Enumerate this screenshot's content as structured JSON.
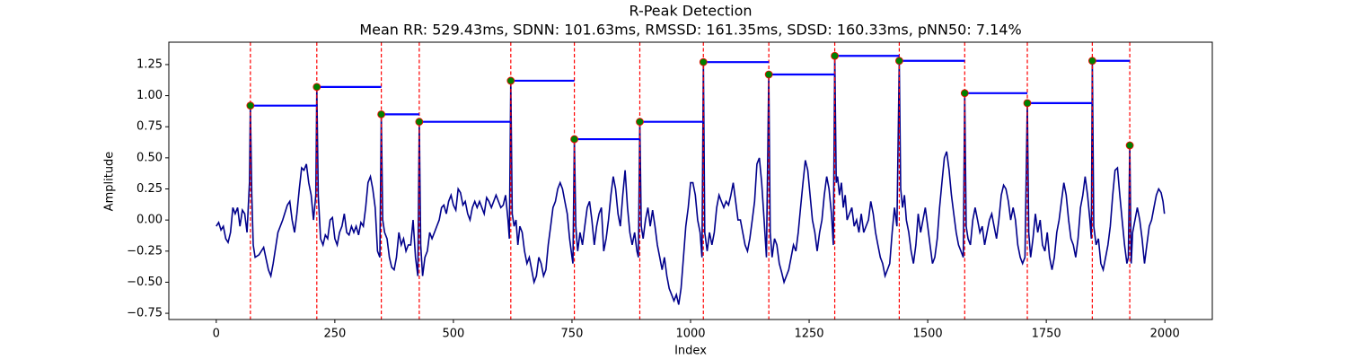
{
  "chart_data": {
    "type": "line",
    "title": "R-Peak Detection",
    "subtitle": "Mean RR: 529.43ms, SDNN: 101.63ms, RMSSD: 161.35ms, SDSD: 160.33ms, pNN50: 7.14%",
    "x_label": "Index",
    "y_label": "Amplitude",
    "xlim": [
      -100,
      2100
    ],
    "ylim": [
      -0.8,
      1.43
    ],
    "xticks": [
      0,
      250,
      500,
      750,
      1000,
      1250,
      1500,
      1750,
      2000
    ],
    "yticks": [
      {
        "value": -0.75,
        "label": "−0.75"
      },
      {
        "value": -0.5,
        "label": "−0.50"
      },
      {
        "value": -0.25,
        "label": "−0.25"
      },
      {
        "value": 0,
        "label": "0.00"
      },
      {
        "value": 0.25,
        "label": "0.25"
      },
      {
        "value": 0.5,
        "label": "0.50"
      },
      {
        "value": 0.75,
        "label": "0.75"
      },
      {
        "value": 1,
        "label": "1.00"
      },
      {
        "value": 1.25,
        "label": "1.25"
      }
    ],
    "series": [
      {
        "color": "#00008b",
        "x": [
          0,
          5,
          10,
          15,
          20,
          25,
          30,
          35,
          40,
          45,
          50,
          55,
          60,
          65,
          70,
          72,
          75,
          78,
          82,
          90,
          100,
          110,
          115,
          120,
          130,
          140,
          150,
          155,
          160,
          165,
          170,
          175,
          180,
          185,
          190,
          195,
          200,
          205,
          210,
          212,
          215,
          220,
          225,
          230,
          235,
          240,
          245,
          250,
          255,
          260,
          265,
          270,
          275,
          280,
          285,
          290,
          295,
          300,
          305,
          310,
          315,
          320,
          325,
          330,
          335,
          340,
          345,
          348,
          351,
          355,
          360,
          365,
          370,
          375,
          380,
          385,
          390,
          395,
          400,
          405,
          410,
          415,
          420,
          425,
          428,
          431,
          435,
          440,
          445,
          450,
          455,
          460,
          465,
          470,
          475,
          480,
          485,
          490,
          495,
          500,
          505,
          510,
          515,
          520,
          525,
          530,
          535,
          540,
          545,
          550,
          555,
          560,
          565,
          570,
          575,
          580,
          590,
          600,
          605,
          610,
          615,
          618,
          621,
          624,
          628,
          632,
          636,
          640,
          645,
          650,
          655,
          660,
          665,
          670,
          675,
          680,
          685,
          690,
          695,
          700,
          705,
          710,
          715,
          720,
          725,
          730,
          735,
          740,
          745,
          750,
          752,
          755,
          758,
          762,
          767,
          772,
          777,
          782,
          787,
          792,
          797,
          802,
          807,
          812,
          817,
          822,
          827,
          832,
          837,
          842,
          847,
          852,
          857,
          862,
          867,
          872,
          877,
          882,
          887,
          890,
          893,
          896,
          900,
          905,
          910,
          915,
          920,
          925,
          930,
          935,
          940,
          945,
          950,
          955,
          960,
          965,
          970,
          975,
          980,
          985,
          990,
          995,
          1000,
          1005,
          1010,
          1015,
          1020,
          1024,
          1027,
          1030,
          1035,
          1040,
          1045,
          1050,
          1055,
          1060,
          1065,
          1070,
          1075,
          1080,
          1085,
          1090,
          1095,
          1100,
          1105,
          1110,
          1115,
          1120,
          1125,
          1130,
          1135,
          1140,
          1145,
          1150,
          1155,
          1160,
          1165,
          1168,
          1172,
          1177,
          1182,
          1187,
          1192,
          1197,
          1202,
          1207,
          1212,
          1217,
          1222,
          1227,
          1232,
          1237,
          1242,
          1247,
          1252,
          1257,
          1262,
          1267,
          1272,
          1277,
          1282,
          1287,
          1292,
          1297,
          1301,
          1304,
          1307,
          1310,
          1314,
          1318,
          1322,
          1326,
          1330,
          1335,
          1340,
          1345,
          1350,
          1355,
          1360,
          1365,
          1370,
          1375,
          1380,
          1385,
          1390,
          1395,
          1400,
          1405,
          1410,
          1415,
          1420,
          1425,
          1430,
          1435,
          1440,
          1443,
          1447,
          1451,
          1455,
          1460,
          1465,
          1470,
          1475,
          1480,
          1485,
          1490,
          1495,
          1500,
          1505,
          1510,
          1515,
          1520,
          1525,
          1530,
          1535,
          1540,
          1545,
          1550,
          1555,
          1560,
          1565,
          1570,
          1575,
          1578,
          1581,
          1585,
          1590,
          1595,
          1600,
          1605,
          1610,
          1615,
          1620,
          1625,
          1630,
          1635,
          1640,
          1645,
          1650,
          1655,
          1660,
          1665,
          1670,
          1675,
          1680,
          1685,
          1690,
          1695,
          1700,
          1705,
          1710,
          1713,
          1717,
          1722,
          1727,
          1732,
          1737,
          1742,
          1747,
          1752,
          1757,
          1762,
          1767,
          1772,
          1777,
          1782,
          1787,
          1792,
          1797,
          1802,
          1807,
          1812,
          1817,
          1822,
          1827,
          1832,
          1837,
          1842,
          1845,
          1847,
          1850,
          1855,
          1860,
          1865,
          1870,
          1875,
          1880,
          1885,
          1890,
          1895,
          1900,
          1905,
          1910,
          1915,
          1920,
          1923,
          1926,
          1929,
          1932,
          1937,
          1942,
          1947,
          1952,
          1957,
          1962,
          1967,
          1972,
          1977,
          1982,
          1987,
          1992,
          1996,
          1999
        ],
        "values": [
          -0.05,
          -0.02,
          -0.08,
          -0.05,
          -0.15,
          -0.18,
          -0.1,
          0.1,
          0.05,
          0.1,
          -0.05,
          0.08,
          0.05,
          -0.1,
          0.3,
          0.92,
          0.2,
          -0.2,
          -0.3,
          -0.28,
          -0.22,
          -0.4,
          -0.45,
          -0.35,
          -0.1,
          0.0,
          0.12,
          0.15,
          0.0,
          -0.1,
          0.05,
          0.25,
          0.42,
          0.4,
          0.45,
          0.3,
          0.2,
          0.0,
          0.2,
          1.07,
          0.2,
          -0.15,
          -0.2,
          -0.12,
          -0.15,
          0.0,
          0.02,
          -0.15,
          -0.2,
          -0.1,
          -0.05,
          0.05,
          -0.1,
          -0.12,
          -0.05,
          -0.1,
          -0.05,
          -0.12,
          -0.02,
          -0.05,
          0.1,
          0.3,
          0.35,
          0.25,
          0.1,
          -0.25,
          -0.3,
          0.85,
          0.0,
          -0.1,
          -0.15,
          -0.3,
          -0.38,
          -0.4,
          -0.3,
          -0.1,
          -0.2,
          -0.15,
          -0.25,
          -0.2,
          -0.2,
          0.0,
          -0.3,
          -0.45,
          0.79,
          -0.2,
          -0.45,
          -0.3,
          -0.25,
          -0.1,
          -0.15,
          -0.1,
          -0.05,
          0.0,
          0.1,
          0.12,
          0.05,
          0.15,
          0.2,
          0.12,
          0.08,
          0.25,
          0.22,
          0.12,
          0.15,
          0.05,
          0.0,
          0.1,
          0.15,
          0.1,
          0.15,
          0.1,
          0.05,
          0.18,
          0.15,
          0.1,
          0.2,
          0.1,
          0.12,
          0.2,
          0.0,
          -0.15,
          1.12,
          0.05,
          -0.05,
          0.0,
          -0.2,
          -0.05,
          -0.1,
          -0.25,
          -0.35,
          -0.3,
          -0.4,
          -0.5,
          -0.45,
          -0.3,
          -0.35,
          -0.45,
          -0.4,
          -0.2,
          -0.05,
          0.1,
          0.15,
          0.25,
          0.3,
          0.25,
          0.15,
          0.05,
          -0.15,
          -0.3,
          -0.35,
          0.65,
          -0.05,
          -0.25,
          -0.1,
          -0.2,
          -0.05,
          0.1,
          0.15,
          0.0,
          -0.2,
          -0.05,
          0.05,
          0.1,
          -0.25,
          -0.15,
          0.0,
          0.2,
          0.35,
          0.25,
          0.05,
          -0.05,
          0.2,
          0.4,
          0.1,
          -0.1,
          -0.2,
          -0.1,
          -0.25,
          -0.3,
          0.79,
          -0.05,
          -0.15,
          0.0,
          0.1,
          -0.05,
          0.08,
          -0.05,
          -0.2,
          -0.3,
          -0.4,
          -0.3,
          -0.45,
          -0.55,
          -0.6,
          -0.65,
          -0.6,
          -0.68,
          -0.55,
          -0.3,
          -0.05,
          0.1,
          0.3,
          0.3,
          0.2,
          0.0,
          -0.1,
          -0.3,
          1.27,
          -0.1,
          -0.25,
          -0.1,
          -0.2,
          -0.1,
          0.1,
          0.2,
          0.15,
          0.1,
          0.15,
          0.12,
          0.2,
          0.3,
          0.15,
          0.0,
          0.0,
          -0.1,
          -0.2,
          -0.25,
          -0.15,
          0.0,
          0.15,
          0.45,
          0.5,
          0.3,
          0.0,
          -0.3,
          1.17,
          -0.1,
          -0.3,
          -0.15,
          -0.2,
          -0.35,
          -0.42,
          -0.5,
          -0.45,
          -0.4,
          -0.3,
          -0.2,
          -0.25,
          -0.1,
          0.1,
          0.3,
          0.48,
          0.4,
          0.2,
          0.0,
          -0.1,
          -0.25,
          -0.1,
          0.0,
          0.2,
          0.35,
          0.25,
          0.05,
          -0.2,
          1.32,
          0.3,
          0.35,
          0.2,
          0.3,
          0.1,
          0.2,
          0.0,
          0.05,
          0.1,
          -0.05,
          0.0,
          -0.1,
          0.05,
          -0.1,
          -0.05,
          0.0,
          0.15,
          0.05,
          -0.1,
          -0.2,
          -0.3,
          -0.35,
          -0.45,
          -0.4,
          -0.35,
          -0.1,
          0.1,
          -0.05,
          1.28,
          0.25,
          0.1,
          0.2,
          0.0,
          -0.1,
          -0.25,
          -0.35,
          -0.2,
          0.05,
          -0.1,
          0.0,
          0.1,
          -0.05,
          -0.2,
          -0.35,
          -0.3,
          -0.15,
          0.1,
          0.3,
          0.5,
          0.55,
          0.4,
          0.2,
          0.05,
          -0.1,
          -0.2,
          -0.25,
          -0.3,
          1.02,
          -0.05,
          -0.15,
          -0.2,
          0.0,
          0.1,
          0.0,
          -0.1,
          -0.05,
          -0.2,
          -0.1,
          0.0,
          0.05,
          -0.05,
          -0.15,
          0.0,
          0.2,
          0.28,
          0.25,
          0.15,
          0.0,
          0.1,
          0.0,
          -0.2,
          -0.3,
          -0.35,
          -0.3,
          0.94,
          -0.1,
          -0.3,
          -0.15,
          0.05,
          -0.1,
          0.0,
          -0.2,
          -0.25,
          -0.1,
          -0.3,
          -0.4,
          -0.3,
          -0.1,
          0.0,
          0.15,
          0.3,
          0.2,
          0.0,
          -0.15,
          -0.2,
          -0.3,
          -0.15,
          0.1,
          0.2,
          0.35,
          0.2,
          0.0,
          -0.15,
          1.28,
          -0.05,
          -0.2,
          -0.15,
          -0.35,
          -0.4,
          -0.3,
          -0.2,
          -0.05,
          0.2,
          0.4,
          0.42,
          0.2,
          0.0,
          -0.2,
          -0.35,
          -0.3,
          0.6,
          -0.35,
          -0.1,
          0.0,
          0.1,
          0.0,
          -0.15,
          -0.35,
          -0.2,
          -0.05,
          0.0,
          0.1,
          0.2,
          0.25,
          0.22,
          0.15,
          0.05
        ]
      }
    ],
    "peaks": {
      "x": [
        72,
        212,
        348,
        428,
        621,
        755,
        893,
        1027,
        1165,
        1304,
        1440,
        1578,
        1710,
        1847,
        1926
      ],
      "values": [
        0.92,
        1.07,
        0.85,
        0.79,
        1.12,
        0.65,
        0.79,
        1.27,
        1.17,
        1.32,
        1.28,
        1.02,
        0.94,
        1.28,
        0.6
      ],
      "color": "#008000",
      "edge_color": "#ff0000",
      "line_color": "#ff0000",
      "interval_color": "#0000ff"
    }
  }
}
